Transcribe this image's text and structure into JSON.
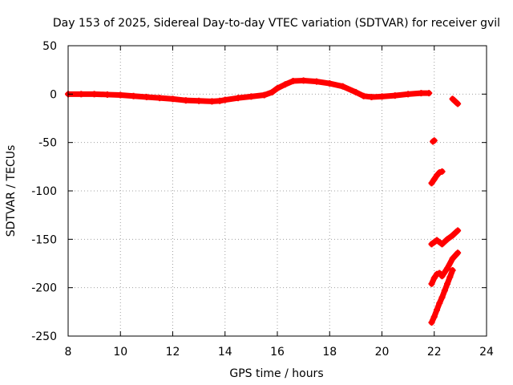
{
  "chart_data": {
    "type": "scatter",
    "title": "Day 153 of 2025, Sidereal Day-to-day VTEC variation (SDTVAR) for receiver gvil",
    "xlabel": "GPS time / hours",
    "ylabel": "SDTVAR / TECUs",
    "xlim": [
      8,
      24
    ],
    "ylim": [
      -250,
      50
    ],
    "xticks": [
      8,
      10,
      12,
      14,
      16,
      18,
      20,
      22,
      24
    ],
    "yticks": [
      50,
      0,
      -50,
      -100,
      -150,
      -200,
      -250
    ],
    "grid": true,
    "marker_color": "#ff0000",
    "series": [
      {
        "points": [
          [
            8.0,
            0.0
          ],
          [
            8.5,
            0.0
          ],
          [
            9.0,
            0.0
          ],
          [
            9.5,
            -0.5
          ],
          [
            10.0,
            -1.0
          ],
          [
            10.5,
            -2.0
          ],
          [
            11.0,
            -3.0
          ],
          [
            11.5,
            -4.0
          ],
          [
            12.0,
            -5.0
          ],
          [
            12.5,
            -6.5
          ],
          [
            13.0,
            -7.0
          ],
          [
            13.5,
            -7.5
          ],
          [
            13.8,
            -7.0
          ],
          [
            14.0,
            -6.0
          ],
          [
            14.5,
            -4.0
          ],
          [
            15.0,
            -2.5
          ],
          [
            15.5,
            -1.0
          ],
          [
            15.8,
            2.0
          ],
          [
            16.0,
            6.0
          ],
          [
            16.3,
            10.0
          ],
          [
            16.6,
            13.5
          ],
          [
            17.0,
            14.0
          ],
          [
            17.5,
            13.0
          ],
          [
            18.0,
            11.0
          ],
          [
            18.5,
            8.0
          ],
          [
            19.0,
            2.0
          ],
          [
            19.3,
            -2.0
          ],
          [
            19.6,
            -3.0
          ],
          [
            20.0,
            -2.5
          ],
          [
            20.5,
            -1.5
          ],
          [
            21.0,
            0.0
          ],
          [
            21.5,
            1.0
          ],
          [
            21.8,
            1.0
          ],
          [
            21.95,
            -49.0
          ],
          [
            22.0,
            -48.0
          ],
          [
            21.9,
            -92.0
          ],
          [
            22.0,
            -88.0
          ],
          [
            22.1,
            -84.0
          ],
          [
            22.2,
            -81.0
          ],
          [
            22.3,
            -80.0
          ],
          [
            21.9,
            -155.0
          ],
          [
            22.0,
            -153.0
          ],
          [
            22.1,
            -151.0
          ],
          [
            22.3,
            -155.0
          ],
          [
            22.5,
            -150.0
          ],
          [
            22.7,
            -146.0
          ],
          [
            22.9,
            -141.0
          ],
          [
            21.9,
            -196.0
          ],
          [
            22.0,
            -190.0
          ],
          [
            22.1,
            -186.0
          ],
          [
            22.2,
            -185.0
          ],
          [
            22.3,
            -188.0
          ],
          [
            22.5,
            -180.0
          ],
          [
            22.7,
            -170.0
          ],
          [
            22.9,
            -164.0
          ],
          [
            21.9,
            -236.0
          ],
          [
            22.0,
            -230.0
          ],
          [
            22.1,
            -223.0
          ],
          [
            22.2,
            -216.0
          ],
          [
            22.3,
            -210.0
          ],
          [
            22.4,
            -203.0
          ],
          [
            22.5,
            -196.0
          ],
          [
            22.6,
            -189.0
          ],
          [
            22.7,
            -182.0
          ],
          [
            22.7,
            -5.0
          ],
          [
            22.9,
            -10.0
          ]
        ]
      }
    ]
  }
}
